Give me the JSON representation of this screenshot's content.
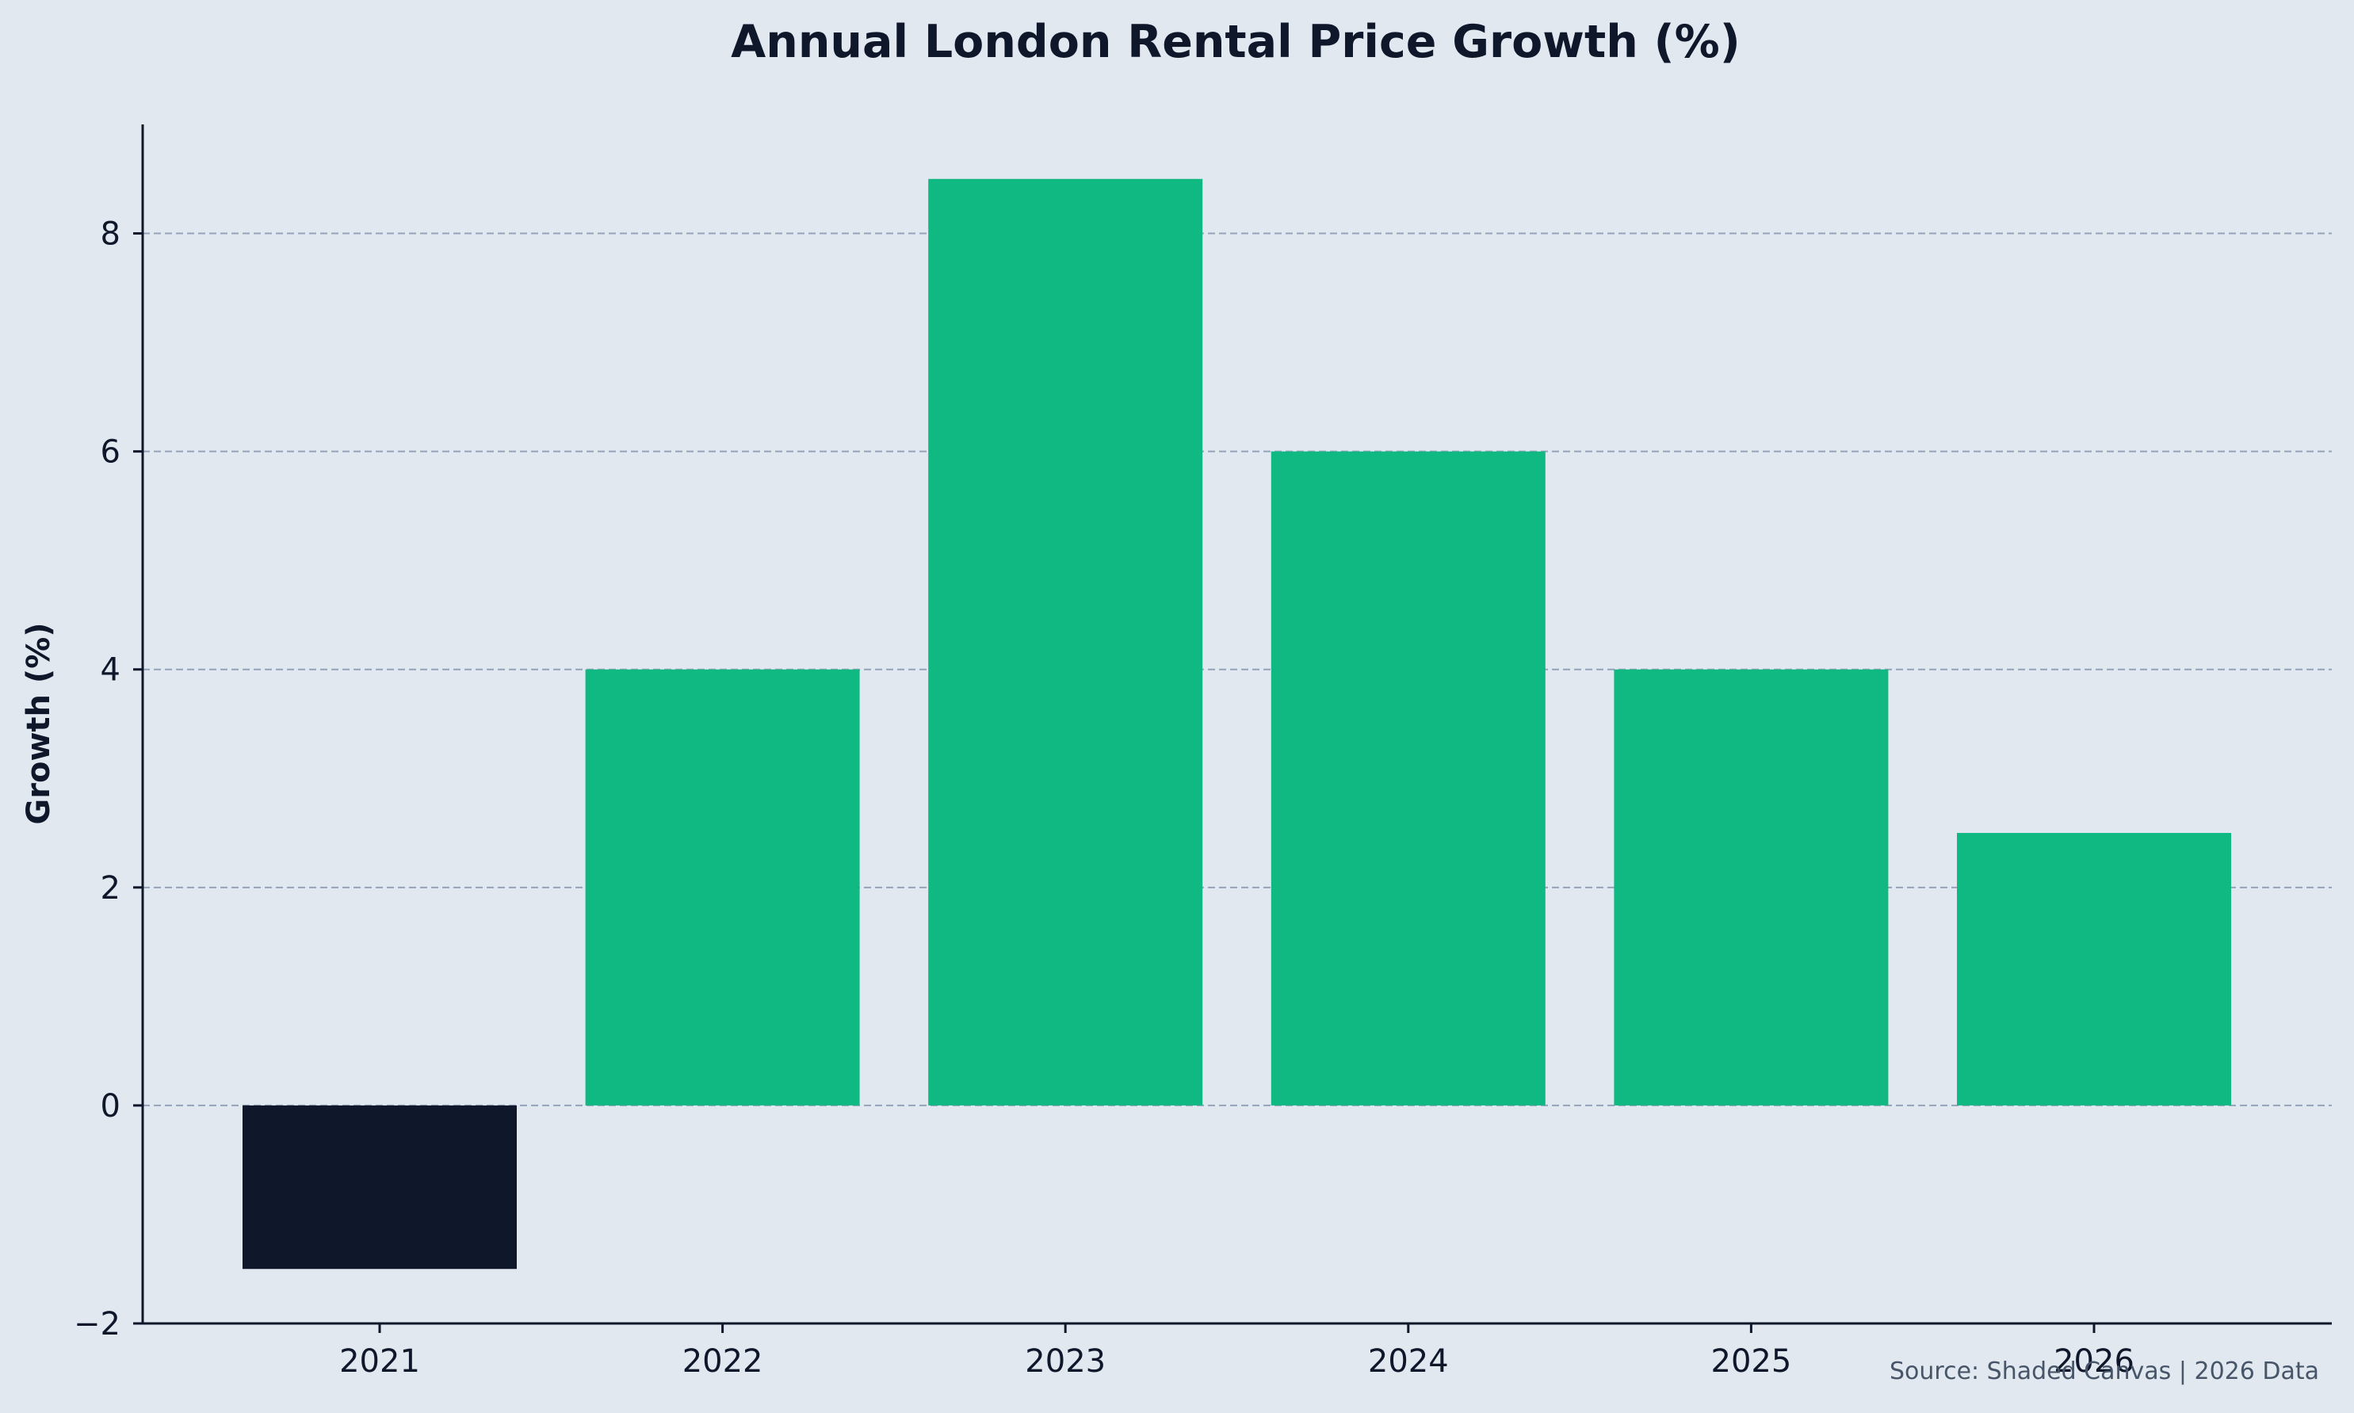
{
  "chart_data": {
    "type": "bar",
    "title": "Annual London Rental Price Growth (%)",
    "xlabel": "",
    "ylabel": "Growth (%)",
    "categories": [
      "2021",
      "2022",
      "2023",
      "2024",
      "2025",
      "2026"
    ],
    "values": [
      -1.5,
      4.0,
      8.5,
      6.0,
      4.0,
      2.5
    ],
    "ylim": [
      -2,
      9
    ],
    "yticks": [
      -2,
      0,
      2,
      4,
      6,
      8
    ],
    "ytick_labels": [
      "−2",
      "0",
      "2",
      "4",
      "6",
      "8"
    ],
    "grid": "horizontal-dashed",
    "legend": "none",
    "colors": {
      "positive": "#10b981",
      "negative": "#0f172a",
      "background": "#e2e8f0",
      "axis": "#0f172a",
      "grid": "#94a3b8"
    }
  },
  "source_note": "Source: Shaded Canvas | 2026 Data"
}
